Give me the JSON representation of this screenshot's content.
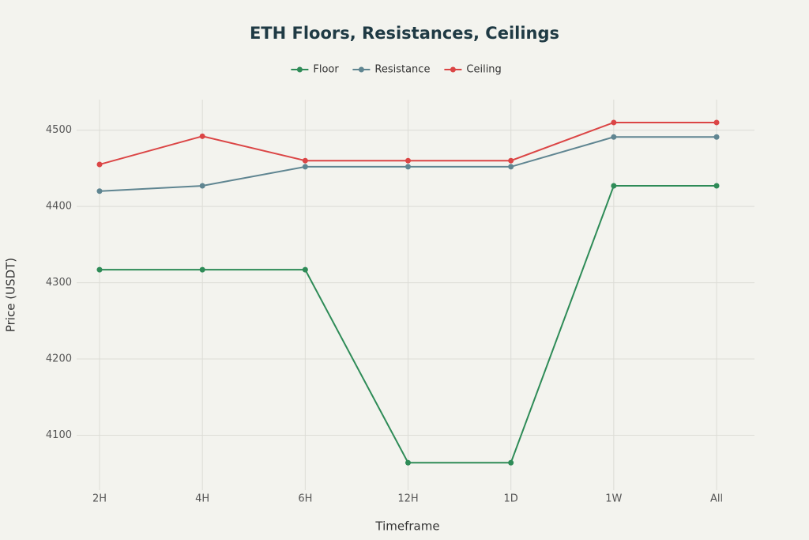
{
  "chart_data": {
    "type": "line",
    "title": "ETH Floors, Resistances, Ceilings",
    "x_label": "Timeframe",
    "y_label": "Price (USDT)",
    "categories": [
      "2H",
      "4H",
      "6H",
      "12H",
      "1D",
      "1W",
      "All"
    ],
    "series": [
      {
        "name": "Floor",
        "color": "#2e8b57",
        "values": [
          4317,
          4317,
          4317,
          4064,
          4064,
          4427,
          4427
        ]
      },
      {
        "name": "Resistance",
        "color": "#5f8591",
        "values": [
          4420,
          4427,
          4452,
          4452,
          4452,
          4491,
          4491
        ]
      },
      {
        "name": "Ceiling",
        "color": "#db4545",
        "values": [
          4455,
          4492,
          4460,
          4460,
          4460,
          4510,
          4510
        ]
      }
    ],
    "ylim": [
      4028,
      4540
    ],
    "yticks": [
      4100,
      4200,
      4300,
      4400,
      4500
    ],
    "grid": true
  }
}
